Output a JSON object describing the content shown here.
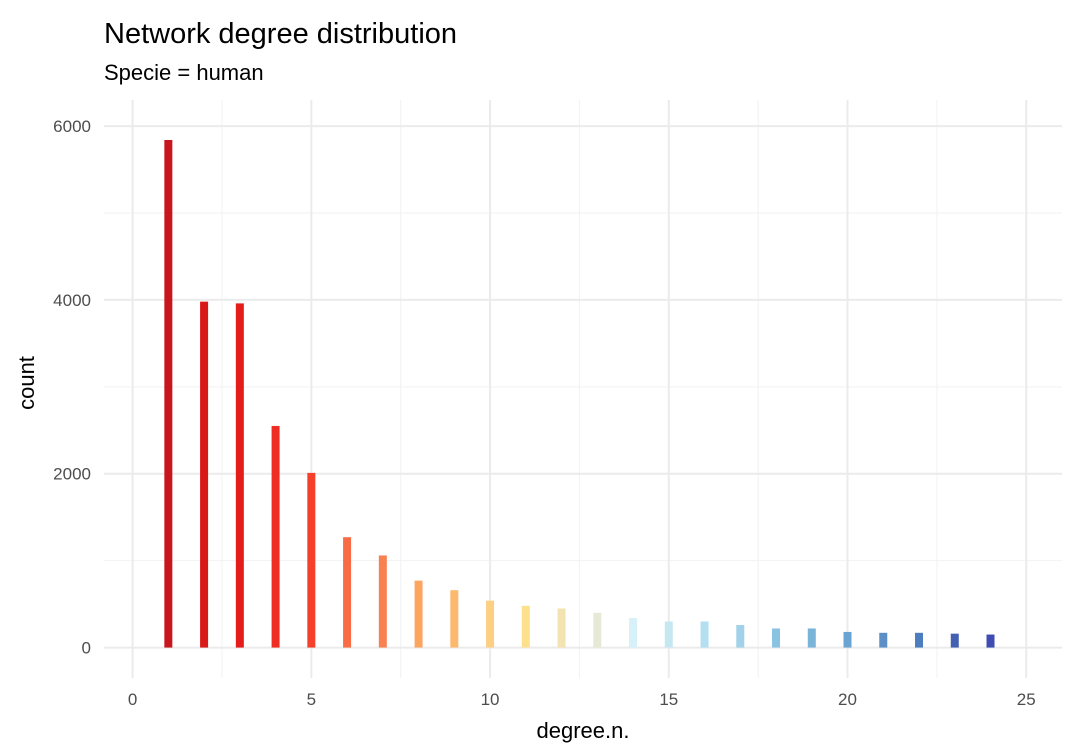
{
  "chart_data": {
    "type": "bar",
    "title": "Network degree distribution",
    "subtitle": "Specie = human",
    "xlabel": "degree.n.",
    "ylabel": "count",
    "xlim": [
      -0.8,
      26
    ],
    "ylim": [
      -350,
      6300
    ],
    "x_ticks": [
      0,
      5,
      10,
      15,
      20,
      25
    ],
    "x_tick_labels": [
      "0",
      "5",
      "10",
      "15",
      "20",
      "25"
    ],
    "y_ticks": [
      0,
      2000,
      4000,
      6000
    ],
    "y_tick_labels": [
      "0",
      "2000",
      "4000",
      "6000"
    ],
    "grid": true,
    "legend": "none",
    "x": [
      1,
      2,
      3,
      4,
      5,
      6,
      7,
      8,
      9,
      10,
      11,
      12,
      13,
      14,
      15,
      16,
      17,
      18,
      19,
      20,
      21,
      22,
      23,
      24
    ],
    "values": [
      5840,
      3980,
      3960,
      2550,
      2010,
      1270,
      1060,
      770,
      660,
      540,
      480,
      450,
      400,
      340,
      300,
      300,
      260,
      220,
      220,
      180,
      170,
      170,
      160,
      150
    ],
    "colors": [
      "#c7161e",
      "#d91818",
      "#e61b1b",
      "#f02d23",
      "#f5402b",
      "#f86b45",
      "#f98051",
      "#fba561",
      "#fcb86c",
      "#fdcf82",
      "#fde08c",
      "#f2e3b0",
      "#e6e9d5",
      "#d6f1f8",
      "#c5e7f2",
      "#b3dff0",
      "#a1d2ea",
      "#89c3e2",
      "#7ab4d9",
      "#6aa4d2",
      "#5b8fc6",
      "#4c7dbf",
      "#4460b2",
      "#3f4db3"
    ]
  }
}
